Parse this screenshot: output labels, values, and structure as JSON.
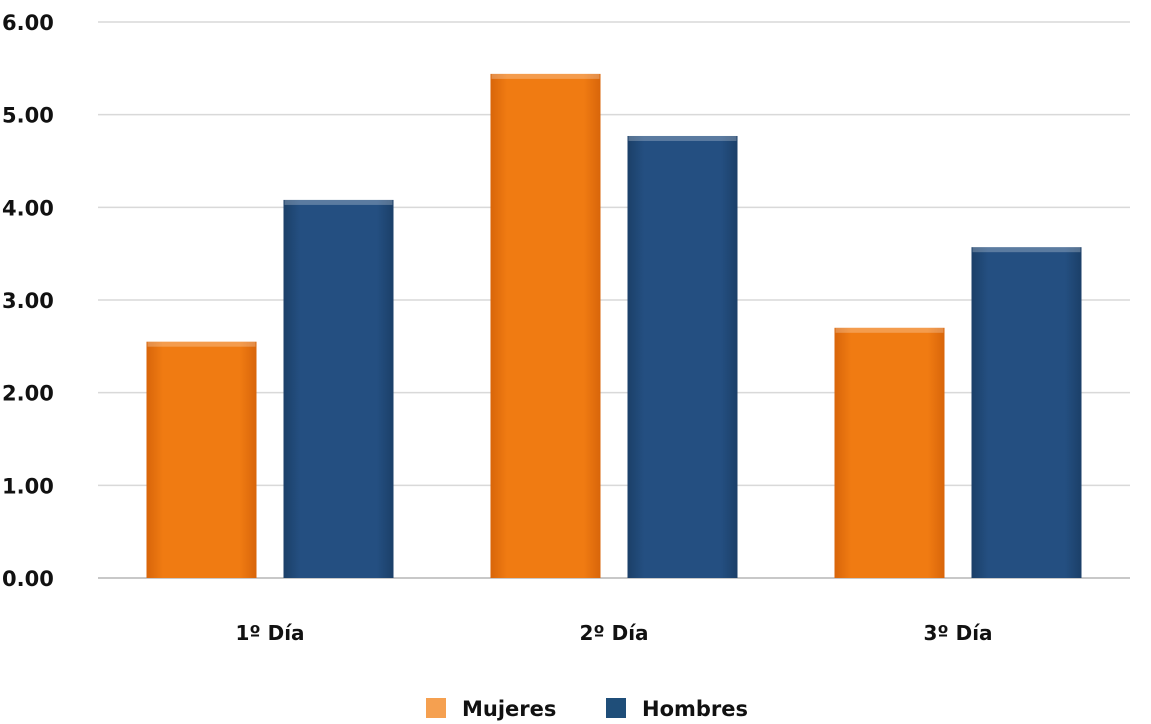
{
  "chart_data": {
    "type": "bar",
    "categories": [
      "1º Día",
      "2º Día",
      "3º Día"
    ],
    "series": [
      {
        "name": "Mujeres",
        "values": [
          2.55,
          5.44,
          2.7
        ],
        "color": "#f07b12",
        "legend_color": "#f5a050"
      },
      {
        "name": "Hombres",
        "values": [
          4.08,
          4.77,
          3.57
        ],
        "color": "#234d7e",
        "legend_color": "#1f4e79"
      }
    ],
    "ylim": [
      0,
      6
    ],
    "yticks": [
      "0.00",
      "1.00",
      "2.00",
      "3.00",
      "4.00",
      "5.00",
      "6.00"
    ],
    "grid": true,
    "legend_position": "bottom",
    "title": "",
    "xlabel": "",
    "ylabel": ""
  }
}
